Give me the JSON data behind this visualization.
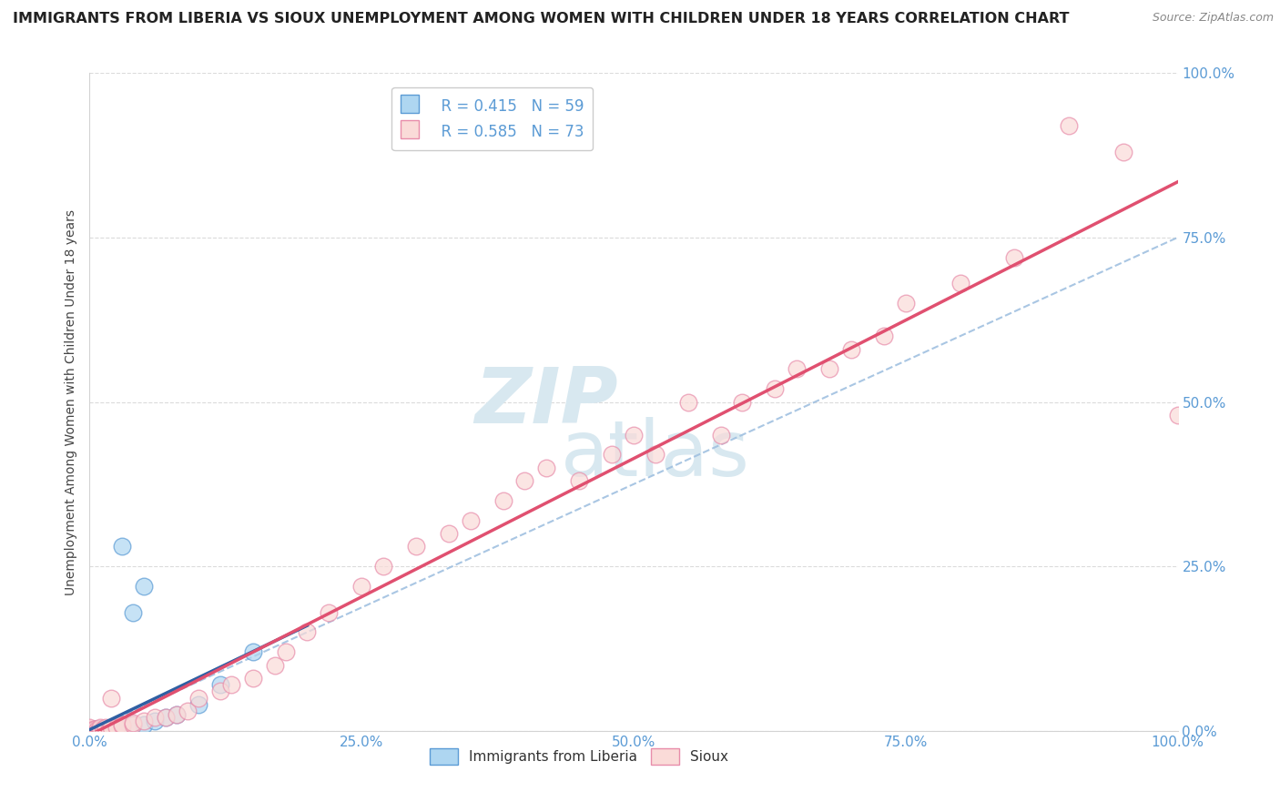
{
  "title": "IMMIGRANTS FROM LIBERIA VS SIOUX UNEMPLOYMENT AMONG WOMEN WITH CHILDREN UNDER 18 YEARS CORRELATION CHART",
  "source": "Source: ZipAtlas.com",
  "legend_blue_r": "R = 0.415",
  "legend_blue_n": "N = 59",
  "legend_pink_r": "R = 0.585",
  "legend_pink_n": "N = 73",
  "blue_scatter_color": "#AED6F1",
  "blue_scatter_edge": "#5B9BD5",
  "pink_scatter_color": "#FADBD8",
  "pink_scatter_edge": "#E88DAA",
  "blue_line_color": "#2E5FA3",
  "pink_line_color": "#E05070",
  "dashed_line_color": "#A0C0E0",
  "watermark_color": "#D8E8F0",
  "tick_color": "#5B9BD5",
  "ylabel_color": "#444444",
  "title_color": "#222222",
  "source_color": "#888888",
  "blue_x": [
    0.0,
    0.0,
    0.0,
    0.0,
    0.0,
    0.0,
    0.0,
    0.0,
    0.0,
    0.0,
    0.002,
    0.002,
    0.003,
    0.003,
    0.003,
    0.004,
    0.004,
    0.005,
    0.005,
    0.005,
    0.005,
    0.006,
    0.006,
    0.007,
    0.007,
    0.008,
    0.008,
    0.008,
    0.009,
    0.009,
    0.01,
    0.01,
    0.01,
    0.01,
    0.012,
    0.012,
    0.013,
    0.015,
    0.015,
    0.015,
    0.016,
    0.018,
    0.02,
    0.02,
    0.022,
    0.025,
    0.03,
    0.03,
    0.04,
    0.05,
    0.06,
    0.07,
    0.08,
    0.1,
    0.12,
    0.15,
    0.03,
    0.04,
    0.05
  ],
  "blue_y": [
    0.0,
    0.0,
    0.0,
    0.0,
    0.0,
    0.0,
    0.0,
    0.0,
    0.0,
    0.0,
    0.0,
    0.0,
    0.0,
    0.0,
    0.0,
    0.0,
    0.0,
    0.0,
    0.0,
    0.002,
    0.003,
    0.0,
    0.0,
    0.0,
    0.002,
    0.0,
    0.0,
    0.002,
    0.0,
    0.002,
    0.0,
    0.0,
    0.002,
    0.003,
    0.0,
    0.002,
    0.002,
    0.0,
    0.002,
    0.003,
    0.002,
    0.003,
    0.003,
    0.005,
    0.005,
    0.005,
    0.005,
    0.008,
    0.01,
    0.01,
    0.015,
    0.02,
    0.025,
    0.04,
    0.07,
    0.12,
    0.28,
    0.18,
    0.22
  ],
  "pink_x": [
    0.0,
    0.0,
    0.0,
    0.0,
    0.0,
    0.0,
    0.0,
    0.0,
    0.0,
    0.0,
    0.002,
    0.003,
    0.004,
    0.005,
    0.005,
    0.006,
    0.007,
    0.008,
    0.009,
    0.01,
    0.01,
    0.01,
    0.012,
    0.013,
    0.015,
    0.015,
    0.018,
    0.02,
    0.02,
    0.025,
    0.03,
    0.03,
    0.04,
    0.04,
    0.05,
    0.06,
    0.07,
    0.08,
    0.09,
    0.1,
    0.12,
    0.13,
    0.15,
    0.17,
    0.18,
    0.2,
    0.22,
    0.25,
    0.27,
    0.3,
    0.33,
    0.35,
    0.38,
    0.4,
    0.42,
    0.45,
    0.48,
    0.5,
    0.52,
    0.55,
    0.58,
    0.6,
    0.63,
    0.65,
    0.68,
    0.7,
    0.73,
    0.75,
    0.8,
    0.85,
    0.9,
    0.95,
    1.0
  ],
  "pink_y": [
    0.0,
    0.0,
    0.0,
    0.0,
    0.0,
    0.0,
    0.002,
    0.003,
    0.005,
    0.0,
    0.0,
    0.0,
    0.002,
    0.0,
    0.003,
    0.0,
    0.002,
    0.0,
    0.003,
    0.0,
    0.003,
    0.005,
    0.002,
    0.003,
    0.003,
    0.005,
    0.003,
    0.005,
    0.05,
    0.005,
    0.008,
    0.01,
    0.01,
    0.012,
    0.015,
    0.02,
    0.02,
    0.025,
    0.03,
    0.05,
    0.06,
    0.07,
    0.08,
    0.1,
    0.12,
    0.15,
    0.18,
    0.22,
    0.25,
    0.28,
    0.3,
    0.32,
    0.35,
    0.38,
    0.4,
    0.38,
    0.42,
    0.45,
    0.42,
    0.5,
    0.45,
    0.5,
    0.52,
    0.55,
    0.55,
    0.58,
    0.6,
    0.65,
    0.68,
    0.72,
    0.92,
    0.88,
    0.48
  ]
}
